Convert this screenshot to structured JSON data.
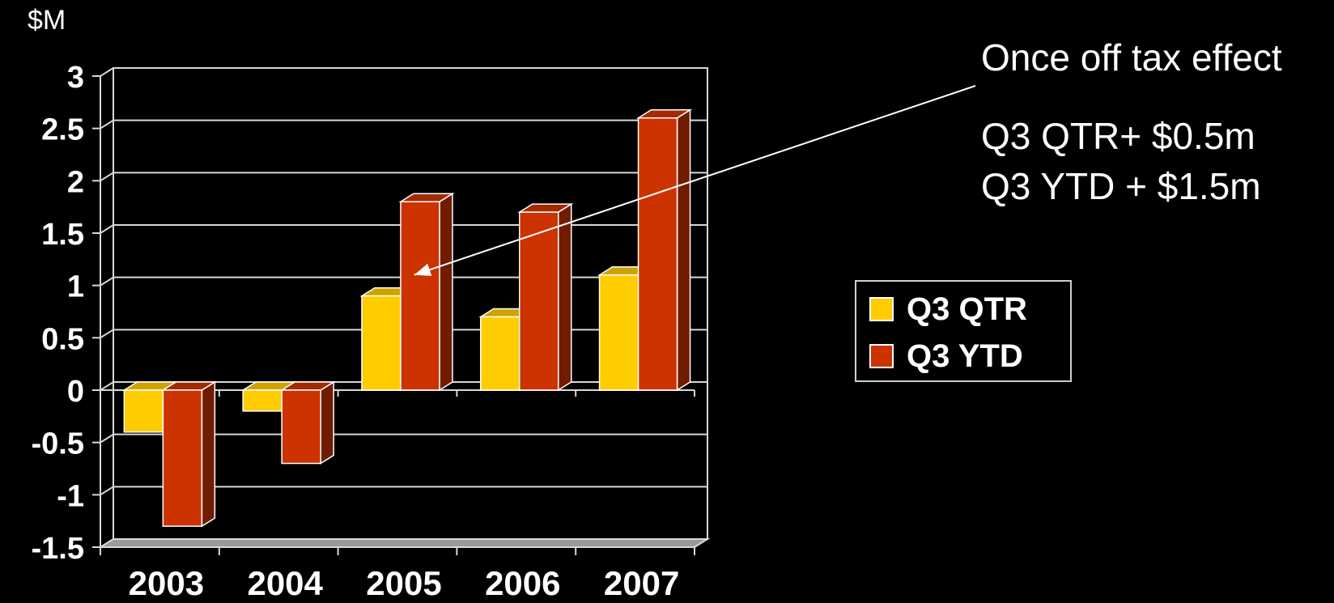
{
  "chart_data": {
    "type": "bar",
    "unit_label": "$M",
    "categories": [
      "2003",
      "2004",
      "2005",
      "2006",
      "2007"
    ],
    "series": [
      {
        "name": "Q3 QTR",
        "color": "#FFCC00",
        "values": [
          -0.4,
          -0.2,
          0.9,
          0.7,
          1.1
        ]
      },
      {
        "name": "Q3 YTD",
        "color": "#CC3300",
        "values": [
          -1.3,
          -0.7,
          1.8,
          1.7,
          2.6
        ]
      }
    ],
    "ylim": [
      -1.5,
      3
    ],
    "yticks": [
      "3",
      "2.5",
      "2",
      "1.5",
      "1",
      "0.5",
      "0",
      "-0.5",
      "-1",
      "-1.5"
    ],
    "grid": true,
    "legend_position": "right",
    "annotation": {
      "title": "Once off tax effect",
      "line1": "Q3 QTR+ $0.5m",
      "line2": "Q3 YTD + $1.5m",
      "arrow_target": {
        "category": "2005",
        "series": "Q3 YTD",
        "value": 1.1
      }
    }
  }
}
